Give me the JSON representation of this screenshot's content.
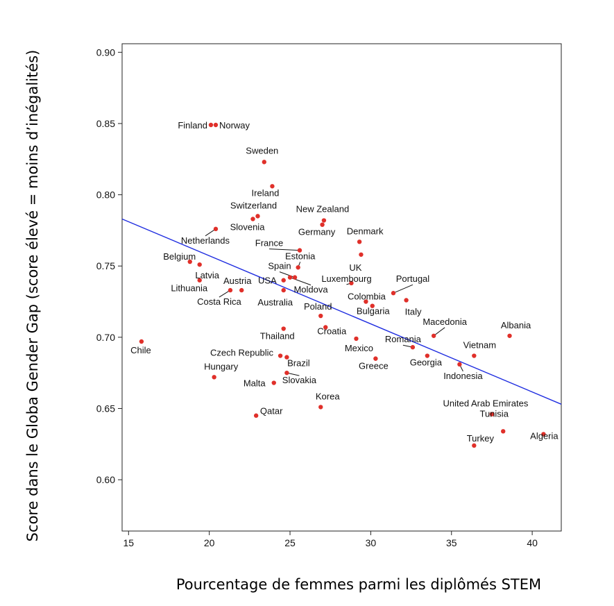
{
  "chart_data": {
    "type": "scatter",
    "xlabel": "Pourcentage de femmes parmi les diplômés STEM",
    "ylabel": "Score dans le Globa Gender Gap (score élevé = moins d’inégalités)",
    "xlim": [
      14.6,
      41.8
    ],
    "ylim": [
      0.564,
      0.906
    ],
    "x_ticks": [
      15,
      20,
      25,
      30,
      35,
      40
    ],
    "y_ticks": [
      0.6,
      0.65,
      0.7,
      0.75,
      0.8,
      0.85,
      0.9
    ],
    "x_tick_labels": [
      "15",
      "20",
      "25",
      "30",
      "35",
      "40"
    ],
    "y_tick_labels": [
      "0.60",
      "0.65",
      "0.70",
      "0.75",
      "0.80",
      "0.85",
      "0.90"
    ],
    "grid": false,
    "legend": "none",
    "trendline": {
      "x": [
        14.6,
        41.8
      ],
      "y": [
        0.783,
        0.653
      ],
      "color": "#1f2de0"
    },
    "colors": {
      "points": "#e0302a",
      "line": "#1f2de0",
      "axis": "#222222"
    },
    "series": [
      {
        "points": [
          {
            "label": "Finland",
            "x": 20.1,
            "y": 0.849
          },
          {
            "label": "Norway",
            "x": 20.4,
            "y": 0.849
          },
          {
            "label": "Sweden",
            "x": 23.4,
            "y": 0.823
          },
          {
            "label": "Ireland",
            "x": 23.9,
            "y": 0.806
          },
          {
            "label": "Switzerland",
            "x": 23.0,
            "y": 0.785
          },
          {
            "label": "Slovenia",
            "x": 22.7,
            "y": 0.783
          },
          {
            "label": "New Zealand",
            "x": 27.1,
            "y": 0.782
          },
          {
            "label": "Germany",
            "x": 27.0,
            "y": 0.779
          },
          {
            "label": "Netherlands",
            "x": 20.4,
            "y": 0.776
          },
          {
            "label": "Denmark",
            "x": 29.3,
            "y": 0.767
          },
          {
            "label": "France",
            "x": 25.6,
            "y": 0.761
          },
          {
            "label": "UK",
            "x": 29.4,
            "y": 0.758
          },
          {
            "label": "Belgium",
            "x": 18.8,
            "y": 0.753
          },
          {
            "label": "Latvia",
            "x": 19.4,
            "y": 0.751
          },
          {
            "label": "Estonia",
            "x": 25.5,
            "y": 0.749
          },
          {
            "label": "Spain",
            "x": 25.3,
            "y": 0.742
          },
          {
            "label": "Luxembourg",
            "x": 28.8,
            "y": 0.738
          },
          {
            "label": "Lithuania",
            "x": 19.4,
            "y": 0.74
          },
          {
            "label": "USA",
            "x": 24.6,
            "y": 0.74
          },
          {
            "label": "Moldova",
            "x": 25.0,
            "y": 0.742
          },
          {
            "label": "Austria",
            "x": 22.0,
            "y": 0.733
          },
          {
            "label": "Australia",
            "x": 24.6,
            "y": 0.733
          },
          {
            "label": "Costa Rica",
            "x": 21.3,
            "y": 0.733
          },
          {
            "label": "Portugal",
            "x": 31.4,
            "y": 0.731
          },
          {
            "label": "Colombia",
            "x": 29.7,
            "y": 0.725
          },
          {
            "label": "Italy",
            "x": 32.2,
            "y": 0.726
          },
          {
            "label": "Bulgaria",
            "x": 30.1,
            "y": 0.722
          },
          {
            "label": "Poland",
            "x": 26.9,
            "y": 0.715
          },
          {
            "label": "Croatia",
            "x": 27.2,
            "y": 0.707
          },
          {
            "label": "Thailand",
            "x": 24.6,
            "y": 0.706
          },
          {
            "label": "Chile",
            "x": 15.8,
            "y": 0.697
          },
          {
            "label": "Macedonia",
            "x": 33.9,
            "y": 0.701
          },
          {
            "label": "Albania",
            "x": 38.6,
            "y": 0.701
          },
          {
            "label": "Mexico",
            "x": 29.1,
            "y": 0.699
          },
          {
            "label": "Romania",
            "x": 32.6,
            "y": 0.693
          },
          {
            "label": "Czech Republic",
            "x": 24.4,
            "y": 0.687
          },
          {
            "label": "Brazil",
            "x": 24.8,
            "y": 0.686
          },
          {
            "label": "Vietnam",
            "x": 36.4,
            "y": 0.687
          },
          {
            "label": "Georgia",
            "x": 33.5,
            "y": 0.687
          },
          {
            "label": "Greece",
            "x": 30.3,
            "y": 0.685
          },
          {
            "label": "Indonesia",
            "x": 35.5,
            "y": 0.681
          },
          {
            "label": "Slovakia",
            "x": 24.8,
            "y": 0.675
          },
          {
            "label": "Hungary",
            "x": 20.3,
            "y": 0.672
          },
          {
            "label": "Malta",
            "x": 24.0,
            "y": 0.668
          },
          {
            "label": "Korea",
            "x": 26.9,
            "y": 0.651
          },
          {
            "label": "Qatar",
            "x": 22.9,
            "y": 0.645
          },
          {
            "label": "United Arab Emirates",
            "x": 37.5,
            "y": 0.646
          },
          {
            "label": "Tunisia",
            "x": 38.2,
            "y": 0.634
          },
          {
            "label": "Algeria",
            "x": 40.7,
            "y": 0.632
          },
          {
            "label": "Turkey",
            "x": 36.4,
            "y": 0.624
          }
        ]
      }
    ]
  }
}
